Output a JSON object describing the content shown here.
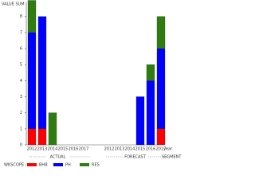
{
  "chart_data": {
    "type": "bar",
    "stacked": true,
    "y_label": "VALUE SUM",
    "x_label": "year",
    "segment_label": "SEGMENT",
    "segments": [
      "ACTUAL",
      "FORECAST"
    ],
    "categories": [
      [
        "2012",
        "2013",
        "2014",
        "2015",
        "2016",
        "2017"
      ],
      [
        "2012",
        "2013",
        "2014",
        "2015",
        "2016",
        "2017"
      ]
    ],
    "legend_title": "WKSCOPE",
    "series": [
      {
        "name": "BHB",
        "color": "#ff0000",
        "values": [
          [
            1,
            1,
            null,
            null,
            null,
            null
          ],
          [
            null,
            null,
            null,
            null,
            null,
            1
          ]
        ]
      },
      {
        "name": "PH",
        "color": "#0000ff",
        "values": [
          [
            6,
            7,
            null,
            null,
            null,
            null
          ],
          [
            null,
            null,
            null,
            3,
            4,
            5
          ]
        ]
      },
      {
        "name": "RES",
        "color": "#2e7d0e",
        "values": [
          [
            2,
            null,
            2,
            null,
            null,
            null
          ],
          [
            null,
            null,
            null,
            null,
            1,
            2
          ]
        ]
      }
    ],
    "ylim": [
      0,
      9
    ],
    "yticks": [
      0,
      1,
      2,
      3,
      4,
      5,
      6,
      7,
      8
    ]
  }
}
